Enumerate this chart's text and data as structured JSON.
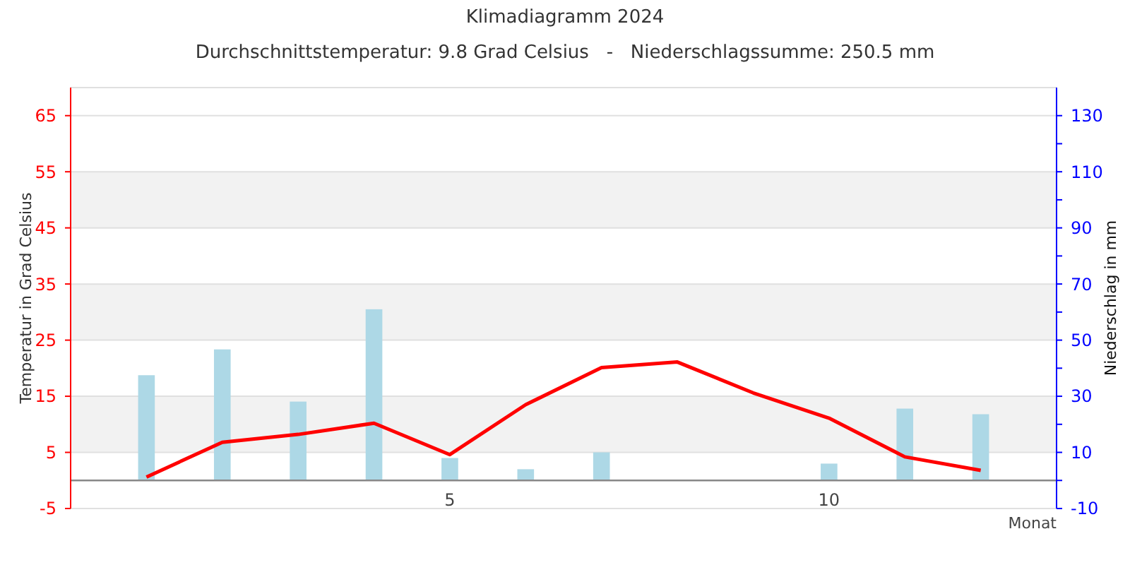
{
  "chart_data": {
    "type": "line",
    "title": "Klimadiagramm 2024",
    "subtitle": "Durchschnittstemperatur: 9.8 Grad Celsius   -   Niederschlagssumme: 250.5 mm",
    "xlabel": "Monat",
    "ylabel": "Temperatur in Grad Celsius",
    "y2label": "Niederschlag in mm",
    "x": [
      1,
      2,
      3,
      4,
      5,
      6,
      7,
      8,
      9,
      10,
      11,
      12
    ],
    "series": [
      {
        "type": "bar",
        "axis": "y2",
        "color": "#add8e6",
        "values": [
          37.5,
          46.7,
          28.1,
          61.0,
          8.0,
          4.0,
          10.0,
          0,
          0,
          6.0,
          25.6,
          23.6
        ]
      },
      {
        "axis": "y",
        "color": "#ff0000",
        "values": [
          0.6,
          6.8,
          8.2,
          10.2,
          4.6,
          13.5,
          20.1,
          21.1,
          15.6,
          11.1,
          4.2,
          1.8
        ]
      }
    ],
    "xlim": [
      0,
      13
    ],
    "xticks": [
      5,
      10
    ],
    "ylim": [
      -5,
      70
    ],
    "yticks": [
      -5,
      5,
      15,
      25,
      35,
      45,
      55,
      65
    ],
    "y2lim": [
      -10,
      140
    ],
    "y2ticks": [
      -10,
      {
        "value": 0,
        "label": null
      },
      10,
      {
        "value": 20,
        "label": null
      },
      30,
      {
        "value": 40,
        "label": null
      },
      50,
      {
        "value": 60,
        "label": null
      },
      70,
      {
        "value": 80,
        "label": null
      },
      90,
      {
        "value": 100,
        "label": null
      },
      110,
      {
        "value": 120,
        "label": null
      },
      130
    ],
    "bands": [
      {
        "axis": "y",
        "from": 5,
        "to": 15,
        "color": "#f2f2f2"
      },
      {
        "axis": "y",
        "from": 25,
        "to": 35,
        "color": "#f2f2f2"
      },
      {
        "axis": "y",
        "from": 45,
        "to": 55,
        "color": "#f2f2f2"
      }
    ],
    "grid": "y",
    "marker": "none",
    "line_style": "solid"
  }
}
